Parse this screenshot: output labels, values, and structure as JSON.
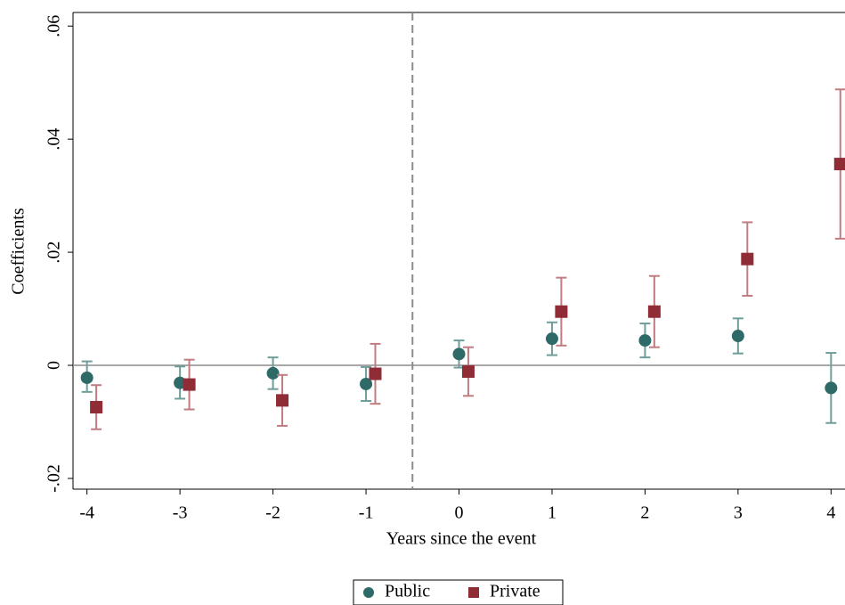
{
  "chart_data": {
    "type": "coefplot",
    "x_label": "Years since the event",
    "y_label": "Coefficients",
    "xlim": [
      -4.15,
      4.15
    ],
    "ylim": [
      -0.0219,
      0.0624
    ],
    "xticks": [
      -4,
      -3,
      -2,
      -1,
      0,
      1,
      2,
      3,
      4
    ],
    "yticks": [
      {
        "value": -0.02,
        "label": "-.02"
      },
      0,
      {
        "value": 0.02,
        "label": ".02"
      },
      {
        "value": 0.04,
        "label": ".04"
      },
      {
        "value": 0.06,
        "label": ".06"
      }
    ],
    "vline": -0.5,
    "hline": 0,
    "series": [
      {
        "name": "Public",
        "color": "#2e6b68",
        "ci_color": "#6f9e9b",
        "marker": "circle",
        "x": [
          -4,
          -3,
          -2,
          -1,
          0,
          1,
          2,
          3,
          4
        ],
        "values": [
          -0.0022,
          -0.0031,
          -0.0014,
          -0.0033,
          0.002,
          0.0047,
          0.0044,
          0.0052,
          -0.004
        ],
        "lo": [
          -0.0047,
          -0.0059,
          -0.0042,
          -0.0063,
          -0.0004,
          0.0018,
          0.0014,
          0.0021,
          -0.0102
        ],
        "hi": [
          0.0007,
          -0.0002,
          0.0014,
          -0.0003,
          0.0044,
          0.0076,
          0.0074,
          0.0083,
          0.0022
        ]
      },
      {
        "name": "Private",
        "color": "#8f2c35",
        "ci_color": "#c17c81",
        "marker": "square",
        "x": [
          -3.9,
          -2.9,
          -1.9,
          -0.9,
          0.1,
          1.1,
          2.1,
          3.1,
          4.1
        ],
        "values": [
          -0.0074,
          -0.0034,
          -0.0062,
          -0.0015,
          -0.0011,
          0.0095,
          0.0095,
          0.0188,
          0.0356
        ],
        "lo": [
          -0.0113,
          -0.0078,
          -0.0107,
          -0.0068,
          -0.0054,
          0.0035,
          0.0032,
          0.0123,
          0.0224
        ],
        "hi": [
          -0.0035,
          0.001,
          -0.0017,
          0.0038,
          0.0032,
          0.0155,
          0.0158,
          0.0253,
          0.0488
        ]
      }
    ]
  }
}
